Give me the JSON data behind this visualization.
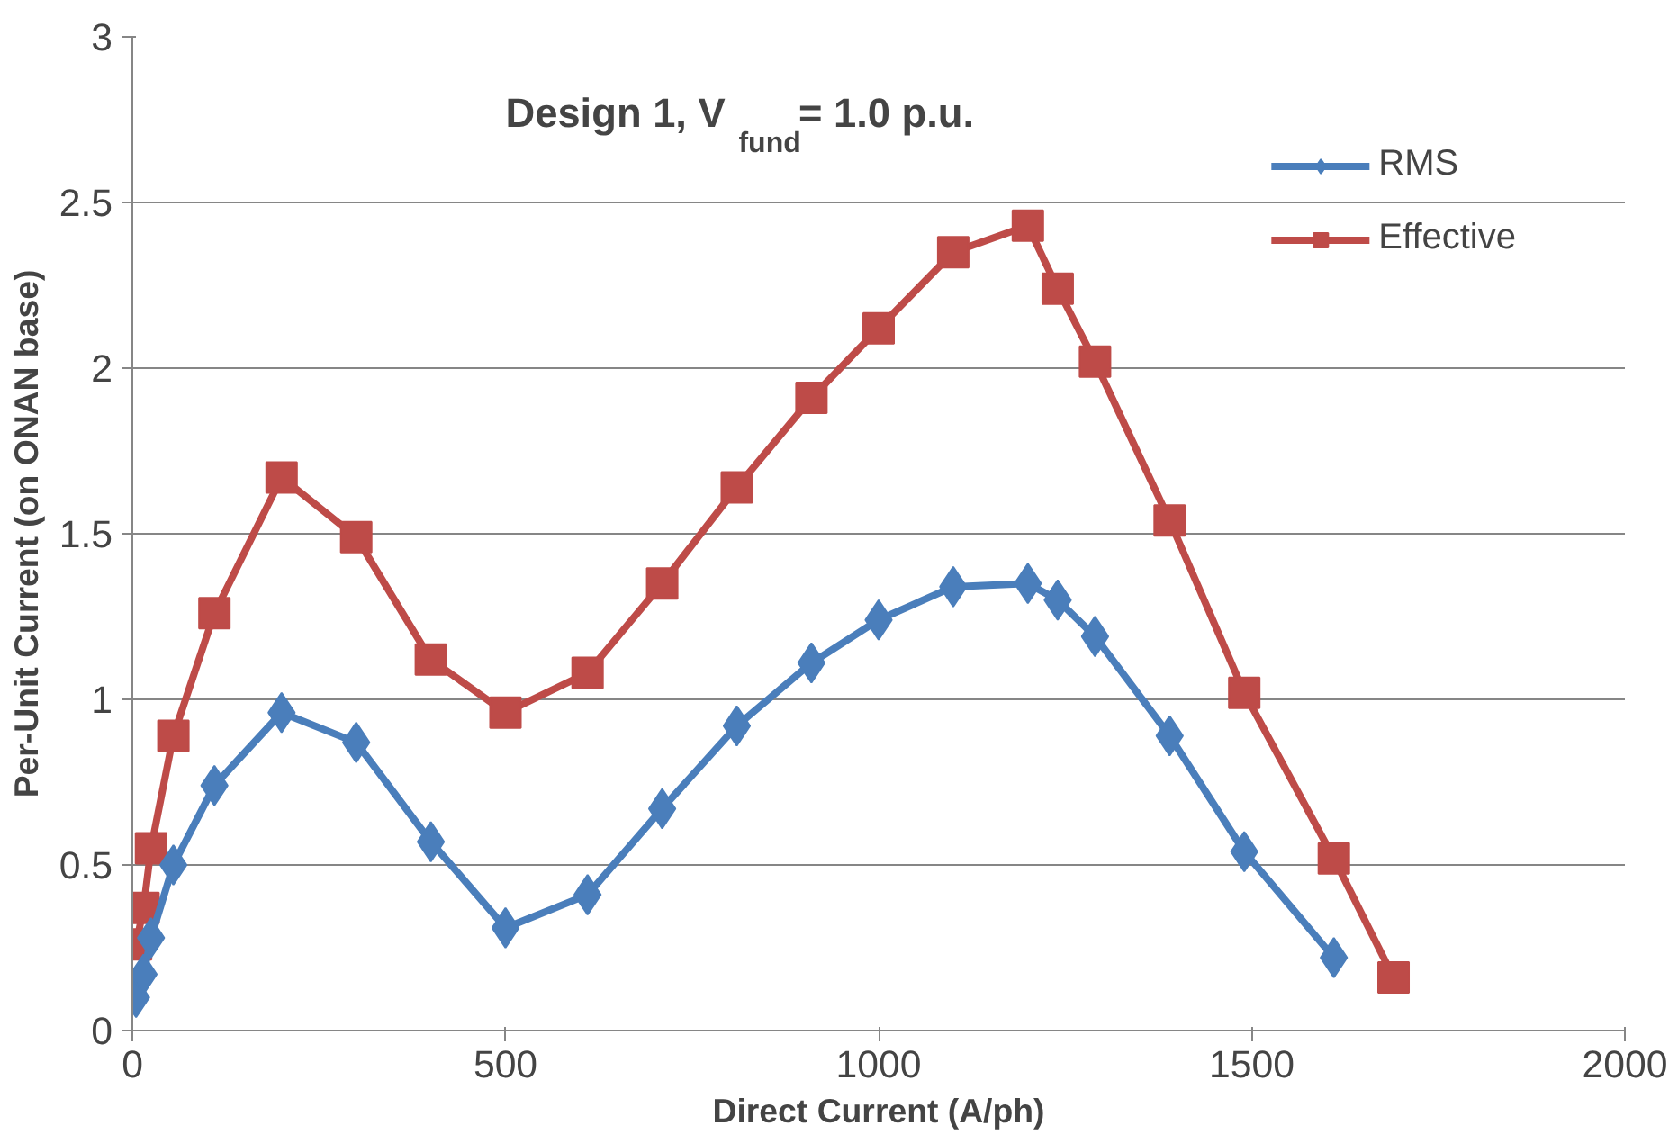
{
  "chart_data": {
    "type": "line",
    "title": "Design 1, V$_{fund}$ = 1.0 p.u.",
    "xlabel": "Direct Current (A/ph)",
    "ylabel": "Per-Unit Current (on ONAN base)",
    "xlim": [
      0,
      2000
    ],
    "xticks": [
      0,
      500,
      1000,
      1500,
      2000
    ],
    "ylim": [
      0,
      3
    ],
    "yticks": [
      0,
      0.5,
      1,
      1.5,
      2,
      2.5,
      3
    ],
    "grid": "y",
    "legend": "top right",
    "line_style": "solid",
    "series": [
      {
        "name": "RMS",
        "color": "#4a7ebb",
        "marker": "diamond",
        "x": [
          5,
          15,
          25,
          55,
          110,
          200,
          300,
          400,
          500,
          610,
          710,
          810,
          910,
          1000,
          1100,
          1200,
          1240,
          1290,
          1390,
          1490,
          1610
        ],
        "values": [
          0.1,
          0.17,
          0.28,
          0.5,
          0.74,
          0.96,
          0.87,
          0.57,
          0.31,
          0.41,
          0.67,
          0.92,
          1.11,
          1.24,
          1.34,
          1.35,
          1.3,
          1.19,
          0.89,
          0.54,
          0.22
        ]
      },
      {
        "name": "Effective",
        "color": "#be4b48",
        "marker": "square",
        "x": [
          5,
          15,
          25,
          55,
          110,
          200,
          300,
          400,
          500,
          610,
          710,
          810,
          910,
          1000,
          1100,
          1200,
          1240,
          1290,
          1390,
          1490,
          1610,
          1690
        ],
        "values": [
          0.26,
          0.37,
          0.55,
          0.89,
          1.26,
          1.67,
          1.49,
          1.12,
          0.96,
          1.08,
          1.35,
          1.64,
          1.91,
          2.12,
          2.35,
          2.43,
          2.24,
          2.02,
          1.54,
          1.02,
          0.52,
          0.16
        ]
      }
    ]
  }
}
